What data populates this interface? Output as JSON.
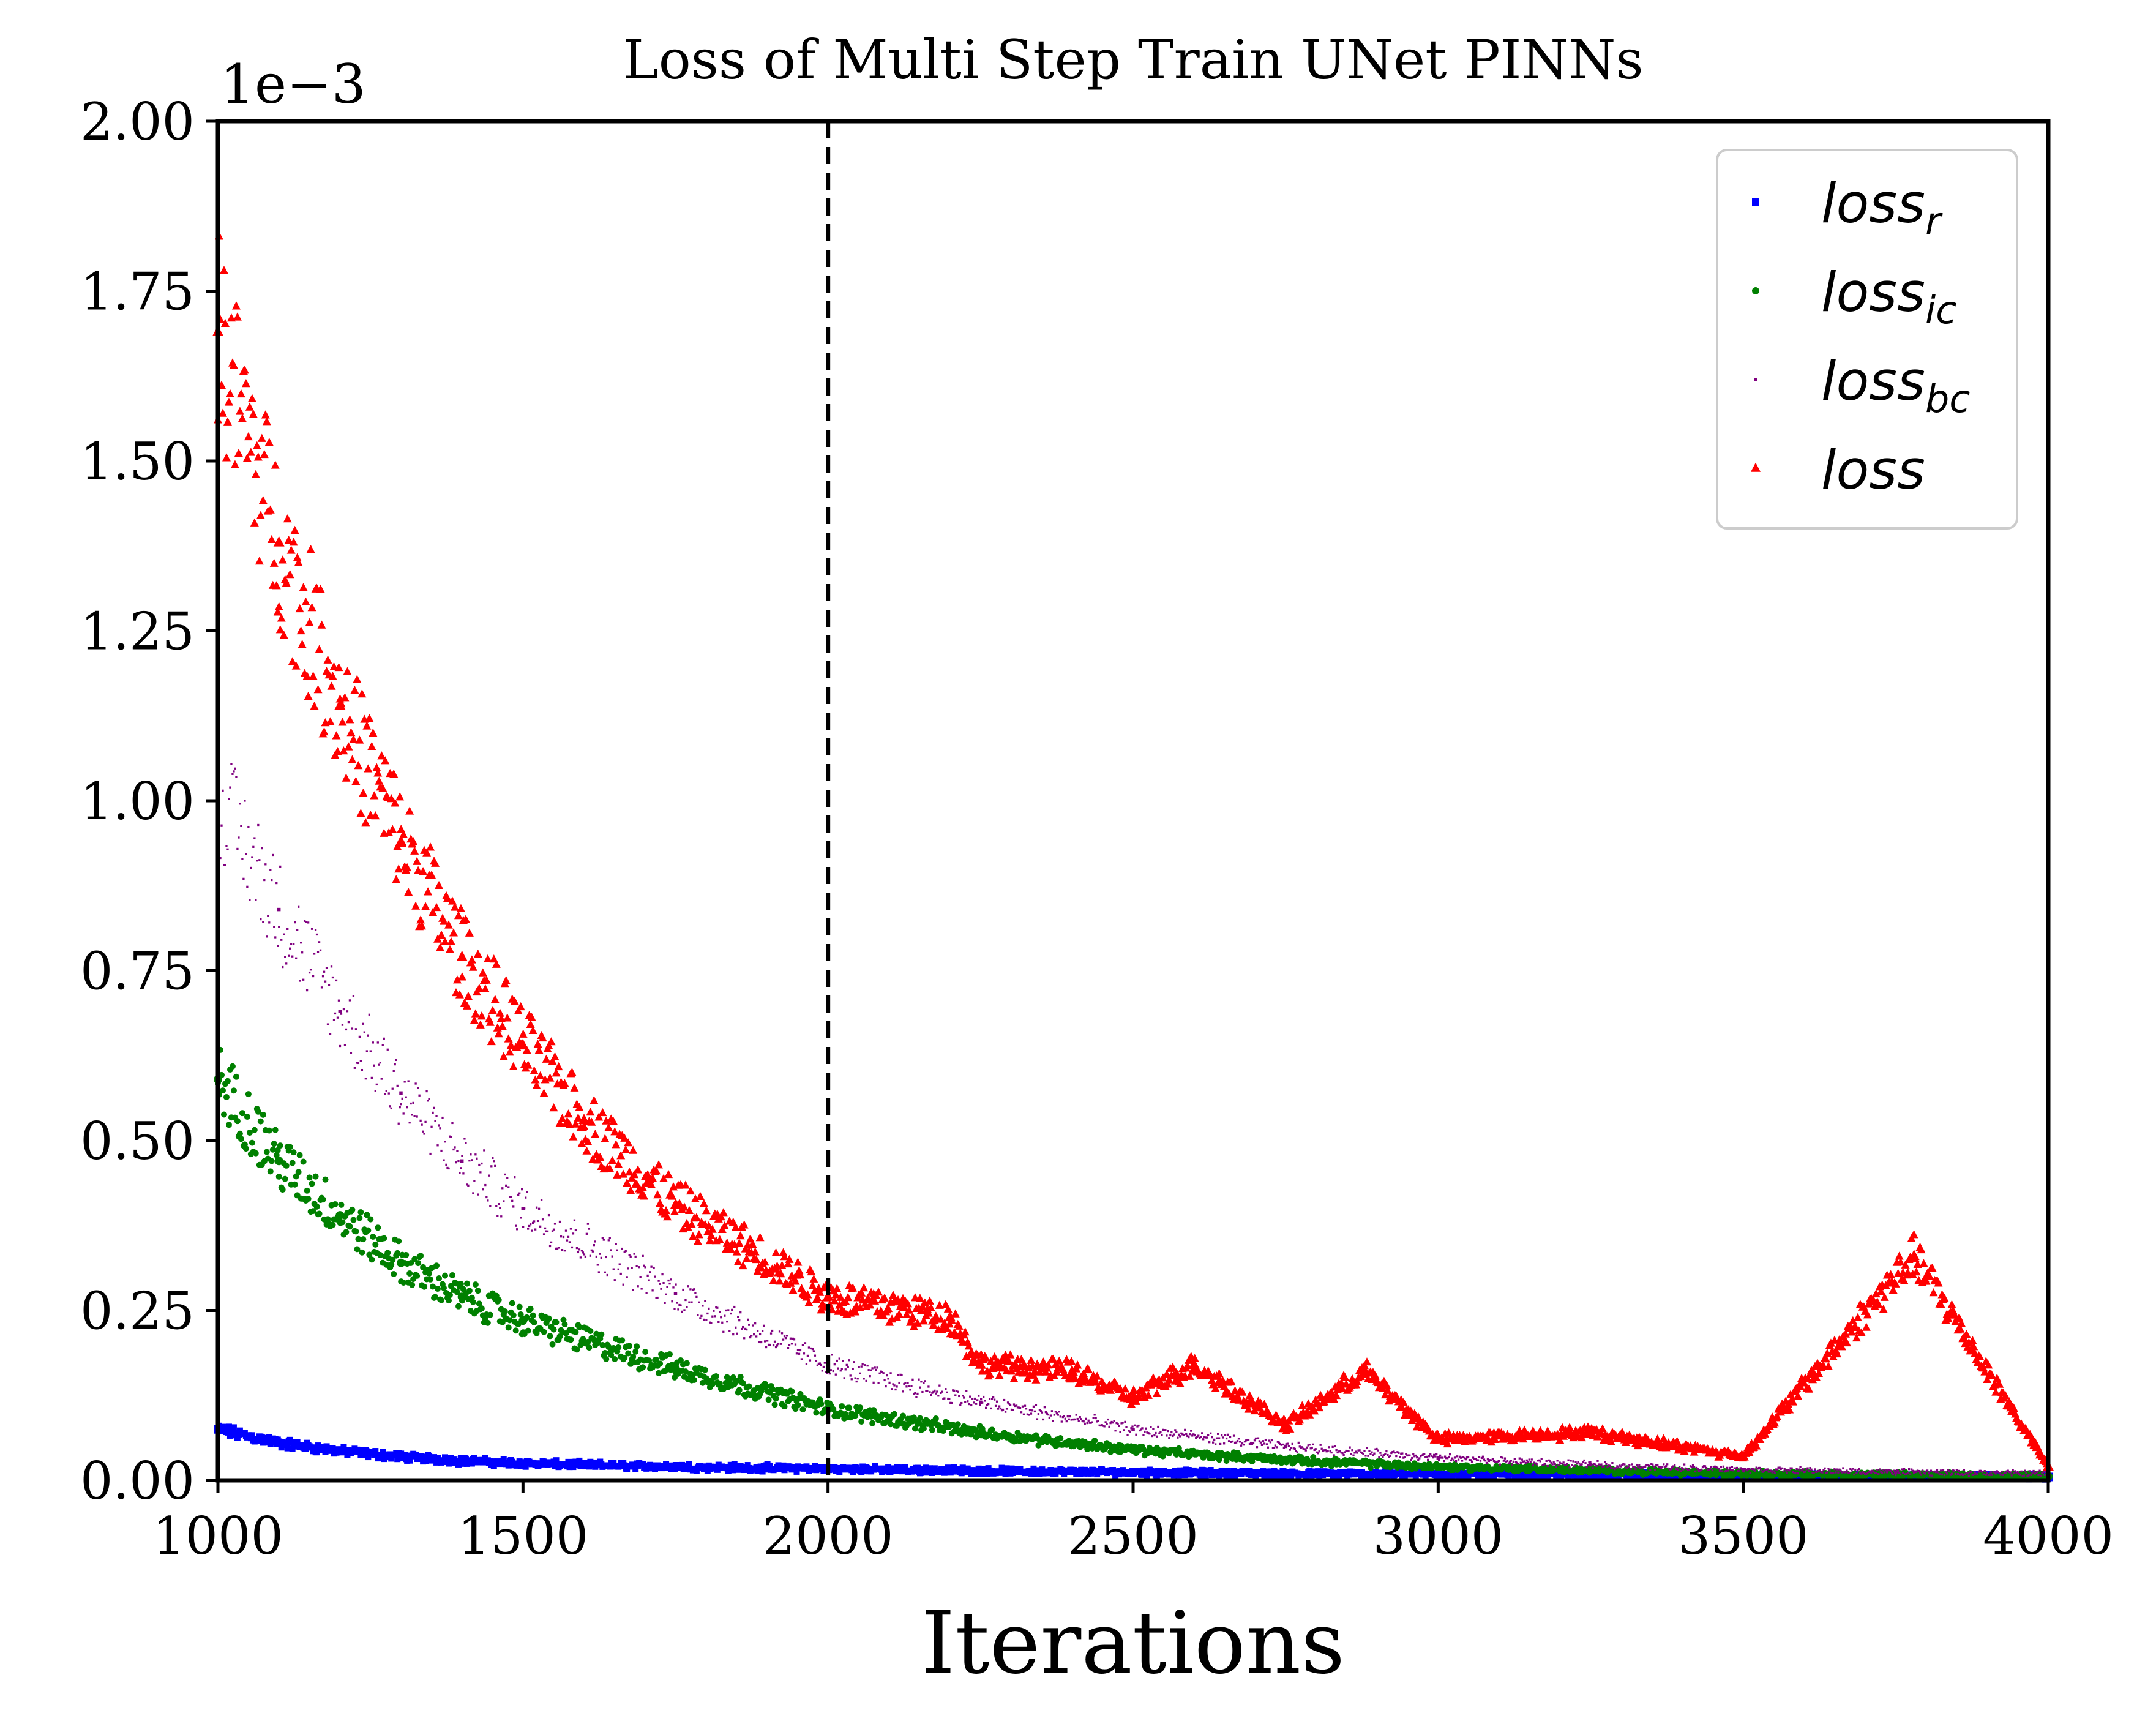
{
  "chart_data": {
    "type": "scatter",
    "title": "Loss of Multi Step Train UNet PINNs",
    "xlabel": "Iterations",
    "ylabel": "",
    "y_scale_label": "1e−3",
    "xlim": [
      1000,
      4000
    ],
    "ylim": [
      0,
      0.002
    ],
    "x_ticks": [
      1000,
      1500,
      2000,
      2500,
      3000,
      3500,
      4000
    ],
    "x_tick_labels": [
      "1000",
      "1500",
      "2000",
      "2500",
      "3000",
      "3500",
      "4000"
    ],
    "y_ticks": [
      0,
      0.00025,
      0.0005,
      0.00075,
      0.001,
      0.00125,
      0.0015,
      0.00175,
      0.002
    ],
    "y_tick_labels": [
      "0.00",
      "0.25",
      "0.50",
      "0.75",
      "1.00",
      "1.25",
      "1.50",
      "1.75",
      "2.00"
    ],
    "grid": false,
    "legend_position": "top-right",
    "reference_line": {
      "x": 2000,
      "style": "dashed",
      "color": "#000000"
    },
    "series": [
      {
        "name_base": "loss",
        "name_sub": "r",
        "color": "#0000ff",
        "marker": "square",
        "x": [
          1000,
          1100,
          1200,
          1300,
          1400,
          1500,
          1750,
          2000,
          2250,
          2500,
          2750,
          3000,
          3250,
          3500,
          3750,
          4000
        ],
        "y": [
          7.5e-05,
          5.5e-05,
          4.3e-05,
          3.5e-05,
          2.9e-05,
          2.5e-05,
          2e-05,
          1.7e-05,
          1.4e-05,
          1.2e-05,
          1e-05,
          9e-06,
          8e-06,
          7e-06,
          6e-06,
          5e-06
        ]
      },
      {
        "name_base": "loss",
        "name_sub": "ic",
        "color": "#008000",
        "marker": "circle",
        "x": [
          1000,
          1100,
          1200,
          1300,
          1400,
          1500,
          1750,
          2000,
          2250,
          2500,
          2750,
          3000,
          3250,
          3500,
          3750,
          4000
        ],
        "y": [
          0.00059,
          0.00047,
          0.00039,
          0.00032,
          0.00027,
          0.000235,
          0.000165,
          0.000105,
          7e-05,
          4.5e-05,
          3e-05,
          2e-05,
          1.5e-05,
          1e-05,
          8e-06,
          6e-06
        ]
      },
      {
        "name_base": "loss",
        "name_sub": "bc",
        "color": "#800080",
        "marker": "dot",
        "x": [
          1000,
          1100,
          1200,
          1300,
          1400,
          1500,
          1750,
          2000,
          2250,
          2500,
          2750,
          3000,
          3250,
          3500,
          3750,
          4000
        ],
        "y": [
          0.00101,
          0.00084,
          0.00069,
          0.00057,
          0.00047,
          0.0004,
          0.000275,
          0.00017,
          0.000115,
          7.5e-05,
          5e-05,
          3.3e-05,
          2.3e-05,
          1.6e-05,
          1.2e-05,
          1e-05
        ]
      },
      {
        "name_base": "loss",
        "name_sub": "",
        "color": "#ff0000",
        "marker": "triangle",
        "x": [
          1000,
          1100,
          1200,
          1300,
          1400,
          1500,
          1600,
          1750,
          2000,
          2200,
          2250,
          2400,
          2500,
          2600,
          2750,
          2880,
          3000,
          3250,
          3500,
          3780,
          4000
        ],
        "y": [
          0.00169,
          0.00138,
          0.00114,
          0.00094,
          0.00077,
          0.00064,
          0.00053,
          0.000405,
          0.00027,
          0.00024,
          0.00017,
          0.00016,
          0.00012,
          0.00017,
          8e-05,
          0.00016,
          6e-05,
          7e-05,
          3.5e-05,
          0.00033,
          2e-05
        ]
      }
    ]
  }
}
